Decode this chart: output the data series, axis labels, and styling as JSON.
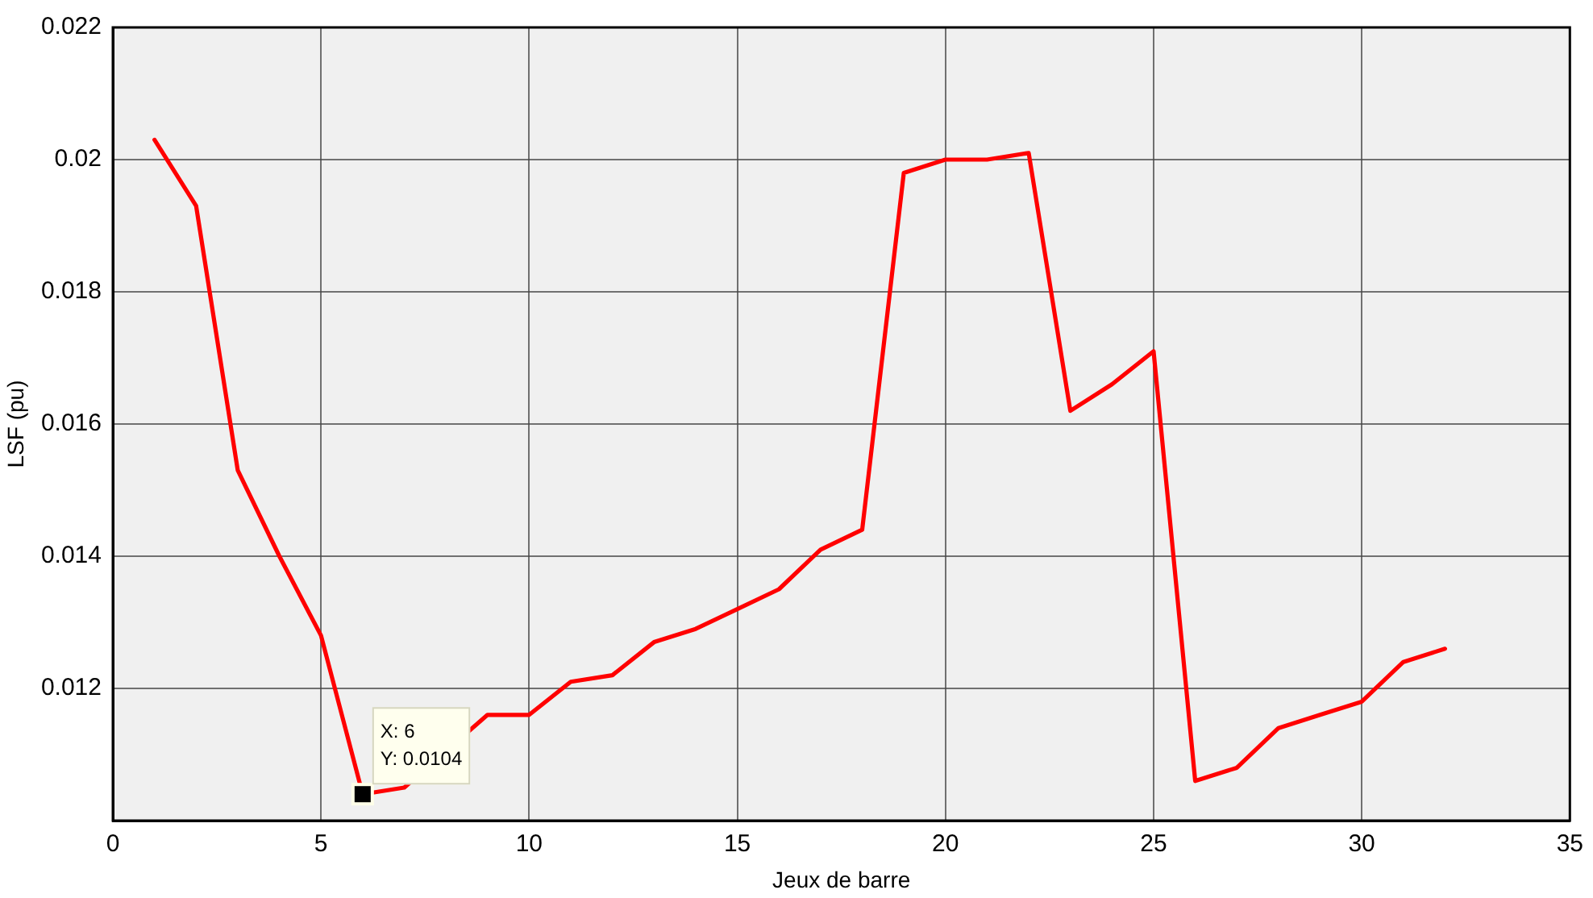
{
  "chart_data": {
    "type": "line",
    "xlabel": "Jeux de barre",
    "ylabel": "LSF (pu)",
    "x": [
      1,
      2,
      3,
      4,
      5,
      6,
      7,
      8,
      9,
      10,
      11,
      12,
      13,
      14,
      15,
      16,
      17,
      18,
      19,
      20,
      21,
      22,
      23,
      24,
      25,
      26,
      27,
      28,
      29,
      30,
      31,
      32
    ],
    "series": [
      {
        "color": "#ff0000",
        "values": [
          0.0203,
          0.0193,
          0.0153,
          0.014,
          0.0128,
          0.0104,
          0.0105,
          null,
          0.0116,
          0.0116,
          0.0121,
          0.0122,
          0.0127,
          0.0129,
          0.0132,
          0.0135,
          0.0141,
          0.0144,
          0.0198,
          0.02,
          0.02,
          0.0201,
          0.0162,
          0.0166,
          0.0171,
          0.0106,
          0.0108,
          0.0114,
          0.0116,
          0.0118,
          0.0124,
          0.0126
        ]
      }
    ],
    "xlim": [
      0,
      35
    ],
    "xticks": [
      0,
      5,
      10,
      15,
      20,
      25,
      30,
      35
    ],
    "ylim": [
      0.01,
      0.022
    ],
    "yticks": [
      0.012,
      0.014,
      0.016,
      0.018,
      0.02,
      0.022
    ],
    "grid": true,
    "legend": false,
    "marker": "none",
    "line_style": "solid",
    "annotations": [
      {
        "text": "X: 6\nY: 0.0104",
        "x": 6,
        "y": 0.0104
      }
    ]
  }
}
